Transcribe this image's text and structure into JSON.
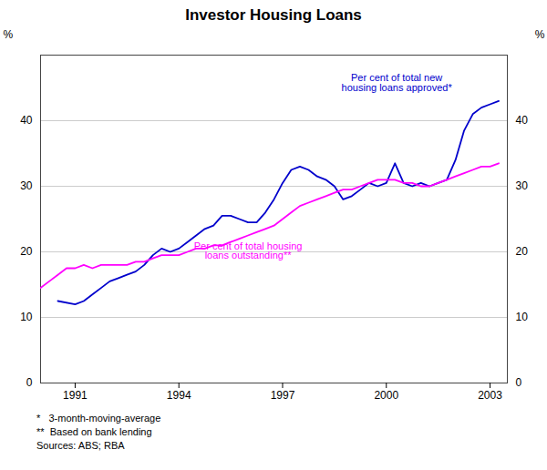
{
  "chart_data": {
    "type": "line",
    "title": "Investor Housing Loans",
    "y_label": "%",
    "y2_label": "%",
    "xlim": [
      1990.0,
      2003.5
    ],
    "xticks": [
      1991,
      1994,
      1997,
      2000,
      2003
    ],
    "ylim": [
      0,
      50
    ],
    "yticks": [
      0,
      10,
      20,
      30,
      40
    ],
    "y2lim": [
      0,
      50
    ],
    "y2ticks": [
      0,
      10,
      20,
      30,
      40
    ],
    "grid": true,
    "series": [
      {
        "color": "#0000CC",
        "x": [
          1990.5,
          1991.0,
          1991.25,
          1991.5,
          1991.75,
          1992.0,
          1992.25,
          1992.5,
          1992.75,
          1993.0,
          1993.25,
          1993.5,
          1993.75,
          1994.0,
          1994.25,
          1994.5,
          1994.75,
          1995.0,
          1995.25,
          1995.5,
          1995.75,
          1996.0,
          1996.25,
          1996.5,
          1996.75,
          1997.0,
          1997.25,
          1997.5,
          1997.75,
          1998.0,
          1998.25,
          1998.5,
          1998.75,
          1999.0,
          1999.25,
          1999.5,
          1999.75,
          2000.0,
          2000.25,
          2000.5,
          2000.75,
          2001.0,
          2001.25,
          2001.5,
          2001.75,
          2002.0,
          2002.25,
          2002.5,
          2002.75,
          2003.0,
          2003.25
        ],
        "values": [
          12.5,
          12.0,
          12.5,
          13.5,
          14.5,
          15.5,
          16.0,
          16.5,
          17.0,
          18.0,
          19.5,
          20.5,
          20.0,
          20.5,
          21.5,
          22.5,
          23.5,
          24.0,
          25.5,
          25.5,
          25.0,
          24.5,
          24.5,
          26.0,
          28.0,
          30.5,
          32.5,
          33.0,
          32.5,
          31.5,
          31.0,
          30.0,
          28.0,
          28.5,
          29.5,
          30.5,
          30.0,
          30.5,
          33.5,
          30.5,
          30.0,
          30.5,
          30.0,
          30.5,
          31.0,
          34.0,
          38.5,
          41.0,
          42.0,
          42.5,
          43.0
        ]
      },
      {
        "color": "#FF00FF",
        "x": [
          1990.0,
          1990.25,
          1990.5,
          1990.75,
          1991.0,
          1991.25,
          1991.5,
          1991.75,
          1992.0,
          1992.25,
          1992.5,
          1992.75,
          1993.0,
          1993.25,
          1993.5,
          1993.75,
          1994.0,
          1994.25,
          1994.5,
          1994.75,
          1995.0,
          1995.25,
          1995.5,
          1995.75,
          1996.0,
          1996.25,
          1996.5,
          1996.75,
          1997.0,
          1997.25,
          1997.5,
          1997.75,
          1998.0,
          1998.25,
          1998.5,
          1998.75,
          1999.0,
          1999.25,
          1999.5,
          1999.75,
          2000.0,
          2000.25,
          2000.5,
          2000.75,
          2001.0,
          2001.25,
          2001.5,
          2001.75,
          2002.0,
          2002.25,
          2002.5,
          2002.75,
          2003.0,
          2003.25
        ],
        "values": [
          14.5,
          15.5,
          16.5,
          17.5,
          17.5,
          18.0,
          17.5,
          18.0,
          18.0,
          18.0,
          18.0,
          18.5,
          18.5,
          19.0,
          19.5,
          19.5,
          19.5,
          20.0,
          20.5,
          20.5,
          21.0,
          21.0,
          21.5,
          22.0,
          22.5,
          23.0,
          23.5,
          24.0,
          25.0,
          26.0,
          27.0,
          27.5,
          28.0,
          28.5,
          29.0,
          29.5,
          29.5,
          30.0,
          30.5,
          31.0,
          31.0,
          31.0,
          30.5,
          30.5,
          30.0,
          30.0,
          30.5,
          31.0,
          31.5,
          32.0,
          32.5,
          33.0,
          33.0,
          33.5
        ]
      }
    ],
    "annotations": [
      {
        "text": "Per cent of total new\nhousing loans approved*",
        "x": 2000.3,
        "y": 44.5,
        "color": "#0000CC"
      },
      {
        "text": "Per cent of total housing\nloans outstanding**",
        "x": 1996.0,
        "y": 21.5,
        "color": "#FF00FF"
      }
    ],
    "footnote": [
      "*   3-month-moving-average",
      "**  Based on bank lending",
      "Sources: ABS; RBA"
    ]
  }
}
